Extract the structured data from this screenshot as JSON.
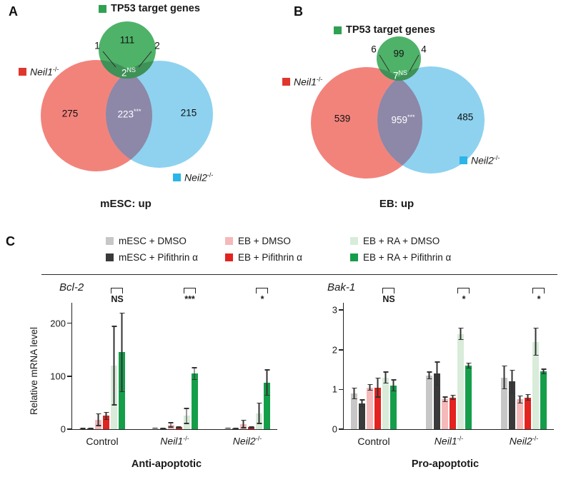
{
  "panels": {
    "a": {
      "letter": "A",
      "tp53_legend": "TP53 target genes",
      "neil1": {
        "name": "Neil1",
        "sup": "-/-"
      },
      "neil2": {
        "name": "Neil2",
        "sup": "-/-"
      },
      "title": "mESC: up"
    },
    "b": {
      "letter": "B",
      "tp53_legend": "TP53 target genes",
      "neil1": {
        "name": "Neil1",
        "sup": "-/-"
      },
      "neil2": {
        "name": "Neil2",
        "sup": "-/-"
      },
      "title": "EB: up"
    },
    "c": {
      "letter": "C"
    }
  },
  "chart_data": [
    {
      "type": "venn",
      "title": "mESC: up",
      "sets": [
        "TP53 target genes",
        "Neil1-/-",
        "Neil2-/-"
      ],
      "colors": {
        "tp53": "#4FB269",
        "neil1": "#F2837B",
        "neil2": "#8ED2EF",
        "overlap": "#8D87A8",
        "tp53_dark": "#3E9157",
        "swatch_tp53": "#2FA152",
        "swatch_neil1": "#E0372C",
        "swatch_neil2": "#2BB5E8"
      },
      "regions": {
        "tp53_only": "111",
        "neil1_only": "275",
        "neil2_only": "215",
        "tp53_neil1": "1",
        "tp53_neil2": "2",
        "center": "2",
        "center_note": "NS",
        "neil1_neil2": "223",
        "neil1_neil2_note": "***"
      }
    },
    {
      "type": "venn",
      "title": "EB: up",
      "sets": [
        "TP53 target genes",
        "Neil1-/-",
        "Neil2-/-"
      ],
      "colors": {
        "tp53": "#4FB269",
        "neil1": "#F2837B",
        "neil2": "#8ED2EF",
        "overlap": "#8D87A8",
        "tp53_dark": "#3E9157",
        "swatch_tp53": "#2FA152",
        "swatch_neil1": "#E0372C",
        "swatch_neil2": "#2BB5E8"
      },
      "regions": {
        "tp53_only": "99",
        "neil1_only": "539",
        "neil2_only": "485",
        "tp53_neil1": "6",
        "tp53_neil2": "4",
        "center": "7",
        "center_note": "NS",
        "neil1_neil2": "959",
        "neil1_neil2_note": "***"
      }
    },
    {
      "type": "bar",
      "title": "Bcl-2",
      "ylabel": "Relative mRNA level",
      "footer": "Anti-apoptotic",
      "ylim": [
        0,
        240
      ],
      "yticks": [
        0,
        100,
        200
      ],
      "categories": [
        "Control",
        "Neil1-/-",
        "Neil2-/-"
      ],
      "significance": [
        "NS",
        "***",
        "*"
      ],
      "series": [
        {
          "name": "mESC + DMSO",
          "color": "#c7c7c7",
          "values": [
            1,
            2,
            2
          ],
          "errors": [
            0.5,
            1,
            1
          ]
        },
        {
          "name": "mESC + Pifithrin α",
          "color": "#3a3a3a",
          "values": [
            1.5,
            2,
            2
          ],
          "errors": [
            0.5,
            1,
            1
          ]
        },
        {
          "name": "EB + DMSO",
          "color": "#f5b9ba",
          "values": [
            18,
            8,
            10
          ],
          "errors": [
            12,
            5,
            8
          ]
        },
        {
          "name": "EB + Pifithrin α",
          "color": "#e2231f",
          "values": [
            25,
            4,
            4
          ],
          "errors": [
            8,
            2,
            2
          ]
        },
        {
          "name": "EB + RA + DMSO",
          "color": "#d8ecd9",
          "values": [
            120,
            25,
            30
          ],
          "errors": [
            75,
            15,
            20
          ]
        },
        {
          "name": "EB + RA + Pifithrin α",
          "color": "#159e4a",
          "values": [
            145,
            105,
            88
          ],
          "errors": [
            75,
            12,
            25
          ]
        }
      ]
    },
    {
      "type": "bar",
      "title": "Bak-1",
      "ylabel": "",
      "footer": "Pro-apoptotic",
      "ylim": [
        0,
        3.2
      ],
      "yticks": [
        0,
        1,
        2,
        3
      ],
      "categories": [
        "Control",
        "Neil1-/-",
        "Neil2-/-"
      ],
      "significance": [
        "NS",
        "*",
        "*"
      ],
      "series": [
        {
          "name": "mESC + DMSO",
          "color": "#c7c7c7",
          "values": [
            0.9,
            1.35,
            1.3
          ],
          "errors": [
            0.15,
            0.1,
            0.3
          ]
        },
        {
          "name": "mESC + Pifithrin α",
          "color": "#3a3a3a",
          "values": [
            0.65,
            1.4,
            1.2
          ],
          "errors": [
            0.1,
            0.3,
            0.3
          ]
        },
        {
          "name": "EB + DMSO",
          "color": "#f5b9ba",
          "values": [
            1.05,
            0.75,
            0.75
          ],
          "errors": [
            0.08,
            0.07,
            0.1
          ]
        },
        {
          "name": "EB + Pifithrin α",
          "color": "#e2231f",
          "values": [
            1.05,
            0.8,
            0.8
          ],
          "errors": [
            0.25,
            0.07,
            0.08
          ]
        },
        {
          "name": "EB + RA + DMSO",
          "color": "#d8ecd9",
          "values": [
            1.3,
            2.4,
            2.2
          ],
          "errors": [
            0.15,
            0.15,
            0.35
          ]
        },
        {
          "name": "EB + RA + Pifithrin α",
          "color": "#159e4a",
          "values": [
            1.1,
            1.6,
            1.45
          ],
          "errors": [
            0.15,
            0.07,
            0.07
          ]
        }
      ]
    }
  ]
}
